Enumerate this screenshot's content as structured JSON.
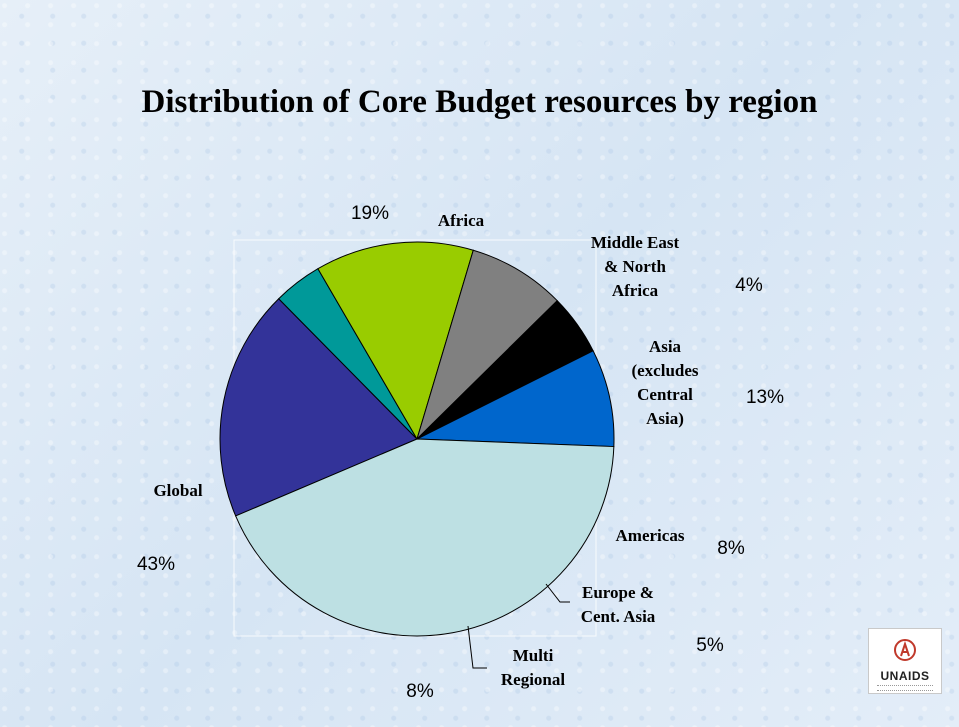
{
  "title": "Distribution of Core Budget resources by region",
  "logo": {
    "text": "UNAIDS",
    "icon": "unaids-emblem-icon"
  },
  "chart_data": {
    "type": "pie",
    "title": "Distribution of Core Budget resources by region",
    "slices": [
      {
        "label": "Africa",
        "label_lines": [
          "Africa"
        ],
        "value": 19,
        "pct_label": "19%",
        "color": "#333399"
      },
      {
        "label": "Middle East & North Africa",
        "label_lines": [
          "Middle East",
          "& North",
          "Africa"
        ],
        "value": 4,
        "pct_label": "4%",
        "color": "#009999"
      },
      {
        "label": "Asia (excludes Central Asia)",
        "label_lines": [
          "Asia",
          "(excludes",
          "Central",
          "Asia)"
        ],
        "value": 13,
        "pct_label": "13%",
        "color": "#99cc00"
      },
      {
        "label": "Americas",
        "label_lines": [
          "Americas"
        ],
        "value": 8,
        "pct_label": "8%",
        "color": "#808080"
      },
      {
        "label": "Europe & Cent. Asia",
        "label_lines": [
          "Europe &",
          "Cent. Asia"
        ],
        "value": 5,
        "pct_label": "5%",
        "color": "#000000"
      },
      {
        "label": "Multi Regional",
        "label_lines": [
          "Multi",
          "Regional"
        ],
        "value": 8,
        "pct_label": "8%",
        "color": "#0066cc"
      },
      {
        "label": "Global",
        "label_lines": [
          "Global"
        ],
        "value": 43,
        "pct_label": "43%",
        "color": "#bde0e3"
      }
    ]
  }
}
